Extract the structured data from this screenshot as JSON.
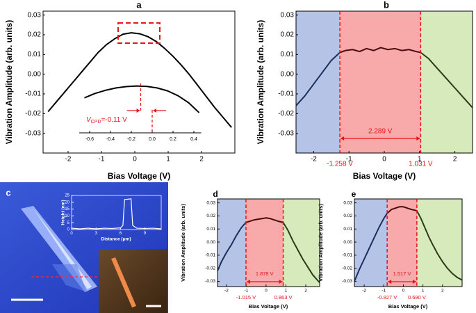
{
  "chart_data": [
    {
      "type": "line",
      "label": "a",
      "x_label": "Bias Voltage (V)",
      "y_label": "Vibration Amplitude (arb. units)",
      "xlim": [
        -2.75,
        3.0
      ],
      "xticks": [
        -2,
        -1,
        0,
        1,
        2
      ],
      "ylim": [
        -0.04,
        0.032
      ],
      "yticks": [
        -0.03,
        -0.02,
        -0.01,
        {
          "value": 0,
          "label": "0.00"
        },
        0.01,
        0.02,
        0.03
      ],
      "series": [
        {
          "color": "#000000",
          "x": [
            -2.6,
            -2.35,
            -2.1,
            -1.85,
            -1.6,
            -1.35,
            -1.1,
            -0.85,
            -0.6,
            -0.35,
            -0.1,
            0.15,
            0.4,
            0.65,
            0.9,
            1.15,
            1.4,
            1.65,
            1.9,
            2.15,
            2.4,
            2.65,
            2.9
          ],
          "values": [
            -0.019,
            -0.014,
            -0.009,
            -0.004,
            0.001,
            0.006,
            0.011,
            0.015,
            0.018,
            0.0203,
            0.021,
            0.0205,
            0.019,
            0.0165,
            0.013,
            0.009,
            0.0045,
            -0.0005,
            -0.006,
            -0.0115,
            -0.017,
            -0.022,
            -0.027
          ]
        }
      ],
      "inset": {
        "xlim": [
          -0.7,
          0.47
        ],
        "xticks": [
          -0.6,
          -0.4,
          -0.2,
          {
            "value": 0,
            "label": "0.0"
          },
          0.2,
          0.4
        ],
        "series": [
          {
            "color": "#000000",
            "x": [
              -0.65,
              -0.55,
              -0.45,
              -0.35,
              -0.25,
              -0.15,
              -0.05,
              0.05,
              0.15,
              0.25,
              0.35,
              0.45
            ],
            "values": [
              -0.012,
              -0.0098,
              -0.0082,
              -0.007,
              -0.0063,
              -0.006,
              -0.0062,
              -0.007,
              -0.0085,
              -0.011,
              -0.0145,
              -0.0195
            ]
          }
        ]
      },
      "annotation": {
        "symbol": "V",
        "subscript": "CPD",
        "text": "=-0.11 V",
        "value": -0.11
      }
    },
    {
      "type": "line",
      "label": "b",
      "x_label": "Bias Voltage (V)",
      "y_label": "Vibration Amplitude (arb. units)",
      "xlim": [
        -2.5,
        2.5
      ],
      "xticks": [
        -2,
        -1,
        0,
        1,
        2
      ],
      "ylim": [
        -0.04,
        0.032
      ],
      "yticks": [
        -0.03,
        -0.02,
        -0.01,
        {
          "value": 0,
          "label": "0.00"
        },
        0.01,
        0.02,
        0.03
      ],
      "region_colors": [
        "#b4c3e6",
        "#f8a9a9",
        "#d6eabb"
      ],
      "boundaries": [
        {
          "value": -1.258,
          "label": "-1.258 V"
        },
        {
          "value": 1.031,
          "label": "1.031 V"
        }
      ],
      "span": {
        "value": 2.289,
        "label": "2.289 V"
      },
      "series": [
        {
          "color": "#1a2f5e",
          "x": [
            -2.5,
            -2.25,
            -2.0,
            -1.75,
            -1.5,
            -1.258
          ],
          "values": [
            -0.016,
            -0.011,
            -0.005,
            0.001,
            0.007,
            0.011
          ]
        },
        {
          "color": "#4a0c0c",
          "x": [
            -1.258,
            -1.1,
            -0.9,
            -0.7,
            -0.5,
            -0.3,
            -0.1,
            0.1,
            0.3,
            0.5,
            0.7,
            0.9,
            1.031
          ],
          "values": [
            0.011,
            0.012,
            0.0125,
            0.0115,
            0.013,
            0.012,
            0.0135,
            0.0125,
            0.013,
            0.012,
            0.0125,
            0.0115,
            0.011
          ]
        },
        {
          "color": "#2c3a1a",
          "x": [
            1.031,
            1.25,
            1.5,
            1.75,
            2.0,
            2.25,
            2.5
          ],
          "values": [
            0.011,
            0.008,
            0.003,
            -0.002,
            -0.007,
            -0.012,
            -0.017
          ]
        }
      ]
    },
    {
      "type": "line",
      "label": "c",
      "x_label": "Distance (μm)",
      "y_label": "Height (nm)",
      "xlim": [
        0,
        11
      ],
      "xticks": [
        0,
        3,
        6,
        9
      ],
      "ylim": [
        0,
        25
      ],
      "yticks": [
        0,
        5,
        10,
        15,
        20,
        25
      ],
      "series": [
        {
          "color": "#ffffff",
          "x": [
            0,
            1,
            2,
            3,
            4,
            5,
            6,
            6.3,
            6.5,
            7.3,
            7.5,
            8,
            9,
            10,
            11
          ],
          "values": [
            1,
            0.5,
            1,
            0.5,
            1,
            0.8,
            1.2,
            3,
            22,
            22.5,
            3,
            1,
            0.8,
            1,
            0.5
          ]
        }
      ]
    },
    {
      "type": "line",
      "label": "d",
      "x_label": "Bias Voltage (V)",
      "y_label": "Vibration Amplitude (arb. units)",
      "xlim": [
        -2.45,
        2.7
      ],
      "xticks": [
        -2,
        -1,
        0,
        1,
        2
      ],
      "ylim": [
        -0.034,
        0.033
      ],
      "yticks": [
        -0.03,
        -0.02,
        -0.01,
        {
          "value": 0,
          "label": "0.00"
        },
        0.01,
        0.02,
        0.03
      ],
      "region_colors": [
        "#b4c3e6",
        "#f8a9a9",
        "#d6eabb"
      ],
      "boundaries": [
        {
          "value": -1.015,
          "label": "-1.015 V"
        },
        {
          "value": 0.863,
          "label": "0.863 V"
        }
      ],
      "span": {
        "value": 1.878,
        "label": "1.878 V"
      },
      "series": [
        {
          "color": "#1a2f5e",
          "x": [
            -2.45,
            -2.25,
            -2.0,
            -1.75,
            -1.5,
            -1.25,
            -1.015
          ],
          "values": [
            -0.022,
            -0.015,
            -0.008,
            -0.002,
            0.005,
            0.011,
            0.015
          ]
        },
        {
          "color": "#4a0c0c",
          "x": [
            -1.015,
            -0.8,
            -0.6,
            -0.4,
            -0.2,
            0,
            0.2,
            0.4,
            0.6,
            0.863
          ],
          "values": [
            0.015,
            0.016,
            0.017,
            0.0175,
            0.018,
            0.0185,
            0.018,
            0.017,
            0.016,
            0.015
          ]
        },
        {
          "color": "#2c3a1a",
          "x": [
            0.863,
            1.1,
            1.35,
            1.6,
            1.85,
            2.1,
            2.35,
            2.7
          ],
          "values": [
            0.015,
            0.009,
            0.001,
            -0.006,
            -0.013,
            -0.019,
            -0.025,
            -0.031
          ]
        }
      ]
    },
    {
      "type": "line",
      "label": "e",
      "x_label": "Bias Voltage (V)",
      "y_label": "Vibration Amplitude (arb. units)",
      "xlim": [
        -2.5,
        3.0
      ],
      "xticks": [
        -2,
        -1,
        0,
        1,
        2
      ],
      "ylim": [
        -0.034,
        0.033
      ],
      "yticks": [
        -0.03,
        -0.02,
        -0.01,
        {
          "value": 0,
          "label": "0.00"
        },
        0.01,
        0.02,
        0.03
      ],
      "region_colors": [
        "#b4c3e6",
        "#f8a9a9",
        "#d6eabb"
      ],
      "boundaries": [
        {
          "value": -0.827,
          "label": "-0.827 V"
        },
        {
          "value": 0.69,
          "label": "0.690 V"
        }
      ],
      "span": {
        "value": 1.517,
        "label": "1.517 V"
      },
      "series": [
        {
          "color": "#1a2f5e",
          "x": [
            -2.5,
            -2.25,
            -2.0,
            -1.75,
            -1.5,
            -1.25,
            -1.0,
            -0.827
          ],
          "values": [
            -0.03,
            -0.021,
            -0.013,
            -0.005,
            0.003,
            0.011,
            0.018,
            0.022
          ]
        },
        {
          "color": "#4a0c0c",
          "x": [
            -0.827,
            -0.6,
            -0.4,
            -0.2,
            0,
            0.2,
            0.4,
            0.69
          ],
          "values": [
            0.022,
            0.025,
            0.026,
            0.027,
            0.027,
            0.026,
            0.025,
            0.024
          ]
        },
        {
          "color": "#2c3a1a",
          "x": [
            0.69,
            0.9,
            1.1,
            1.3,
            1.5,
            1.75,
            2.0,
            2.25,
            2.5,
            2.75,
            3.0
          ],
          "values": [
            0.024,
            0.018,
            0.011,
            0.004,
            -0.002,
            -0.009,
            -0.015,
            -0.02,
            -0.024,
            -0.027,
            -0.029
          ]
        }
      ]
    }
  ]
}
